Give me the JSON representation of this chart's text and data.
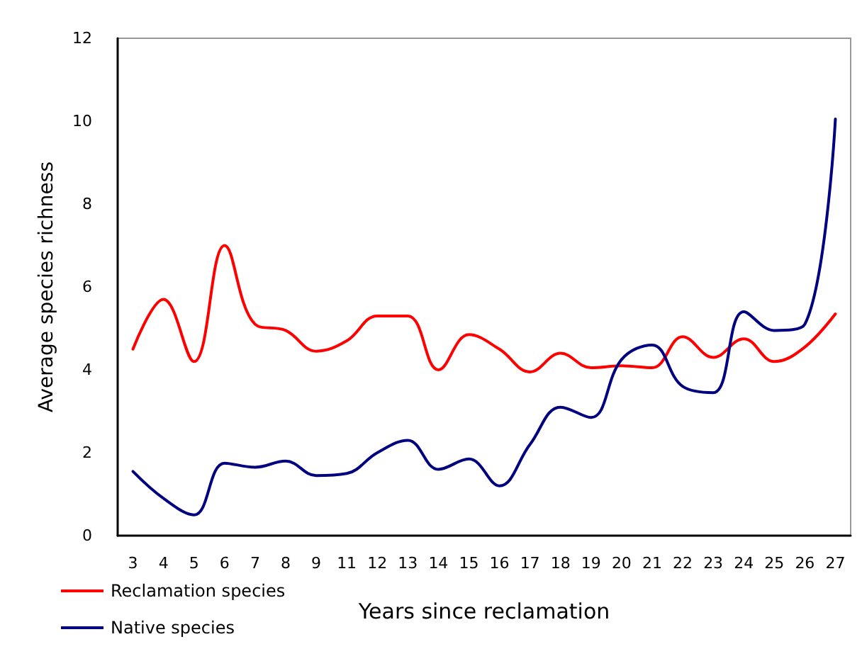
{
  "chart_data": {
    "type": "line",
    "xlabel": "Years since reclamation",
    "ylabel": "Average species richness",
    "categories": [
      "3",
      "4",
      "5",
      "6",
      "7",
      "8",
      "9",
      "11",
      "12",
      "13",
      "14",
      "15",
      "16",
      "17",
      "18",
      "19",
      "20",
      "21",
      "22",
      "23",
      "24",
      "25",
      "26",
      "27"
    ],
    "series": [
      {
        "name": "Reclamation species",
        "color": "#ff0000",
        "values": [
          4.5,
          5.7,
          4.2,
          7.0,
          5.1,
          4.95,
          4.45,
          4.7,
          5.3,
          5.3,
          4.0,
          4.85,
          4.5,
          3.95,
          4.4,
          4.05,
          4.1,
          4.05,
          4.8,
          4.3,
          4.75,
          4.2,
          4.55,
          5.35
        ]
      },
      {
        "name": "Native species",
        "color": "#000080",
        "values": [
          1.55,
          0.9,
          0.5,
          1.75,
          1.65,
          1.8,
          1.45,
          1.5,
          2.0,
          2.3,
          1.6,
          1.85,
          1.2,
          2.2,
          3.1,
          2.85,
          4.25,
          4.6,
          3.6,
          3.45,
          5.4,
          4.95,
          5.1,
          10.05
        ]
      }
    ],
    "ylim": [
      0,
      12
    ],
    "yticks": [
      0,
      2,
      4,
      6,
      8,
      10,
      12
    ],
    "grid": false,
    "legend": "bottom left",
    "marker": "none",
    "line_style": "solid"
  }
}
